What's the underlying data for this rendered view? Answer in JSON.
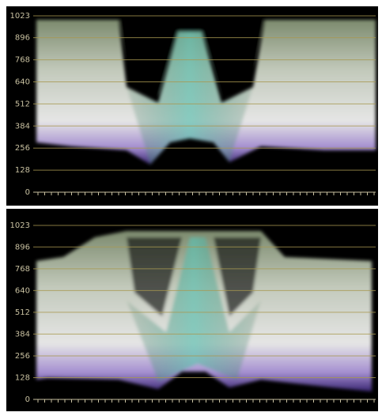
{
  "panels": [
    {
      "yticks": [
        0,
        128,
        256,
        384,
        512,
        640,
        768,
        896,
        1023
      ],
      "ylim": [
        0,
        1023
      ]
    },
    {
      "yticks": [
        0,
        128,
        256,
        384,
        512,
        640,
        768,
        896,
        1023
      ],
      "ylim": [
        0,
        1023
      ]
    }
  ]
}
